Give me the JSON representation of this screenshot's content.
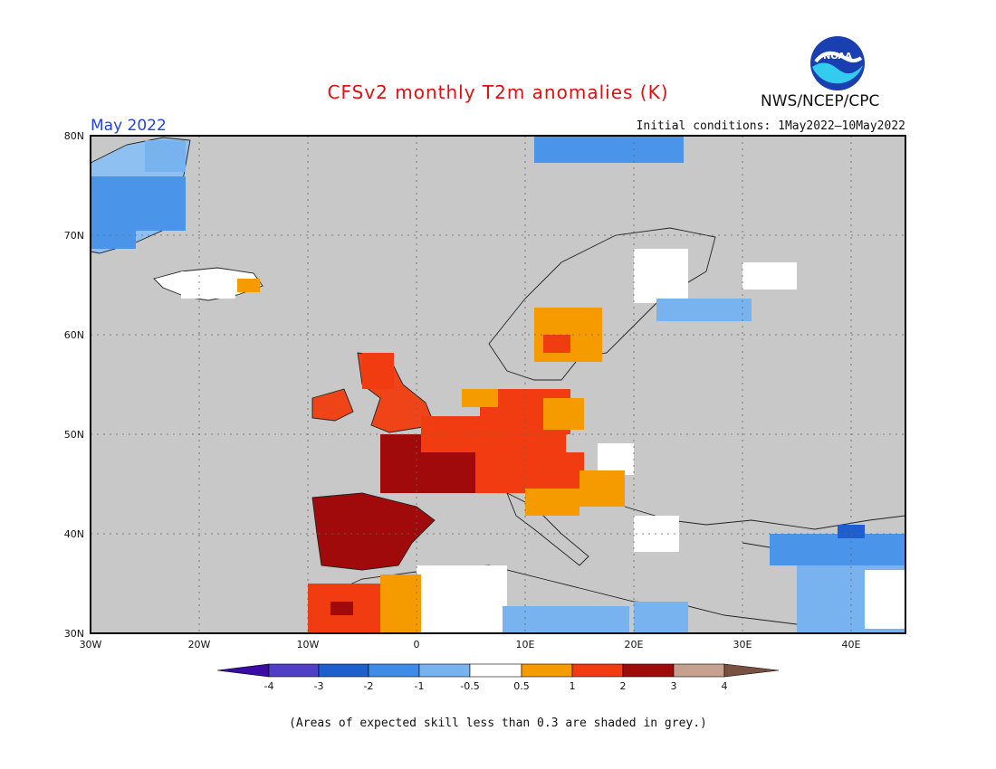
{
  "header": {
    "title": "CFSv2 monthly T2m anomalies (K)",
    "org": "NWS/NCEP/CPC",
    "month": "May 2022",
    "initial_conditions": "Initial conditions: 1May2022—10May2022",
    "logo_text": "NOAA"
  },
  "map": {
    "lat_labels": [
      "80N",
      "70N",
      "60N",
      "50N",
      "40N",
      "30N"
    ],
    "lon_labels": [
      "30W",
      "20W",
      "10W",
      "0",
      "10E",
      "20E",
      "30E",
      "40E"
    ],
    "lon_range": [
      -30,
      45
    ],
    "lat_range": [
      30,
      80
    ],
    "grey_meaning": "Areas of expected skill less than 0.3 are shaded in grey."
  },
  "legend": {
    "levels": [
      "-4",
      "-3",
      "-2",
      "-1",
      "-0.5",
      "0.5",
      "1",
      "2",
      "3",
      "4"
    ],
    "colors": [
      "#3a0ca3",
      "#5040c8",
      "#1e5fcf",
      "#3f8be8",
      "#78b3f0",
      "#ffffff",
      "#f59b00",
      "#f03c10",
      "#a00a0a",
      "#c8a090",
      "#7a5040"
    ]
  },
  "footnote": "(Areas of expected skill less than 0.3 are shaded in grey.)",
  "colors": {
    "grey": "#c8c8c8",
    "title": "#dd1111",
    "month": "#2244dd"
  }
}
